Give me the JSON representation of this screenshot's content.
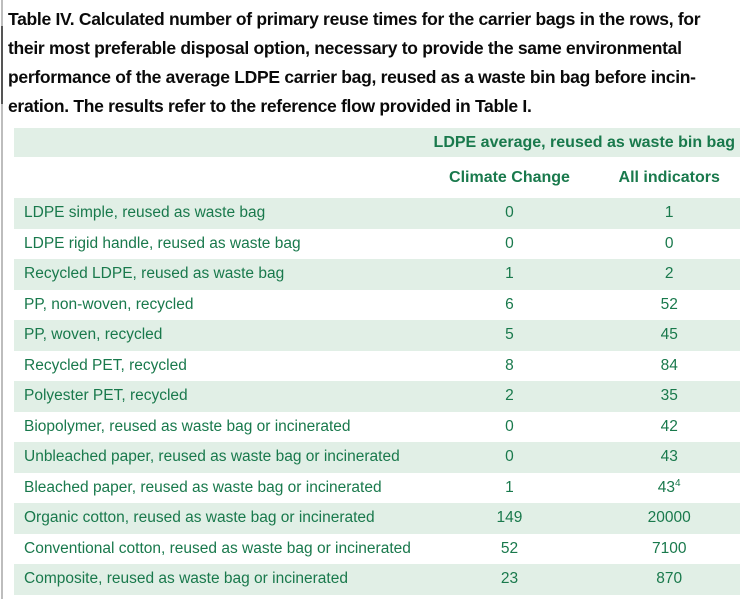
{
  "caption": {
    "lines": [
      "Table IV. Calculated number of primary reuse times for the carrier bags in the rows, for",
      "their most preferable disposal option, necessary to provide the same environmental",
      "performance of the average LDPE carrier bag, reused as a waste bin bag before incin-",
      "eration. The results refer to the reference flow provided in Table I."
    ]
  },
  "table": {
    "span_header": "LDPE average, reused as waste bin bag",
    "col_headers": {
      "climate_change": "Climate Change",
      "all_indicators": "All indicators"
    },
    "rows": [
      {
        "label": "LDPE simple, reused as waste bag",
        "climate_change": "0",
        "all_indicators": "1"
      },
      {
        "label": "LDPE rigid handle, reused as waste bag",
        "climate_change": "0",
        "all_indicators": "0"
      },
      {
        "label": "Recycled LDPE, reused as waste bag",
        "climate_change": "1",
        "all_indicators": "2"
      },
      {
        "label": "PP, non-woven, recycled",
        "climate_change": "6",
        "all_indicators": "52"
      },
      {
        "label": "PP, woven, recycled",
        "climate_change": "5",
        "all_indicators": "45"
      },
      {
        "label": "Recycled PET, recycled",
        "climate_change": "8",
        "all_indicators": "84"
      },
      {
        "label": "Polyester PET, recycled",
        "climate_change": "2",
        "all_indicators": "35"
      },
      {
        "label": "Biopolymer, reused as waste bag or incinerated",
        "climate_change": "0",
        "all_indicators": "42"
      },
      {
        "label": "Unbleached paper, reused as waste bag or incinerated",
        "climate_change": "0",
        "all_indicators": "43"
      },
      {
        "label": "Bleached paper, reused as waste bag or incinerated",
        "climate_change": "1",
        "all_indicators": "43",
        "all_indicators_sup": "4"
      },
      {
        "label": "Organic cotton, reused as waste bag or incinerated",
        "climate_change": "149",
        "all_indicators": "20000"
      },
      {
        "label": "Conventional cotton, reused as waste bag or incinerated",
        "climate_change": "52",
        "all_indicators": "7100"
      },
      {
        "label": "Composite, reused as waste bag or incinerated",
        "climate_change": "23",
        "all_indicators": "870"
      }
    ]
  },
  "colors": {
    "text_green": "#19794c",
    "row_green": "#e1efe6",
    "caption_black": "#0a0a0a"
  }
}
